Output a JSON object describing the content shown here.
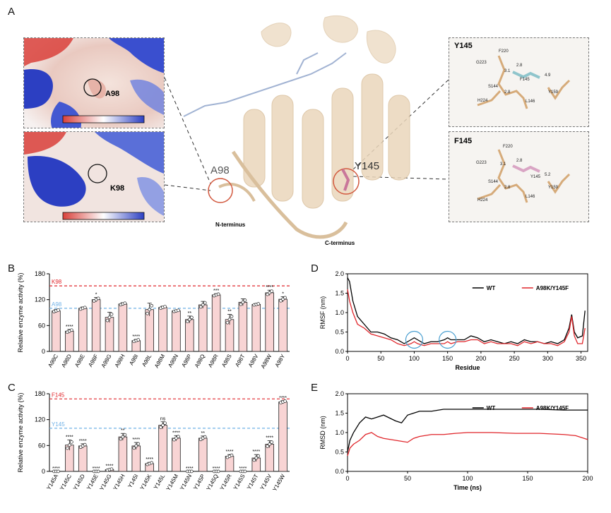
{
  "panel_a": {
    "letter": "A",
    "surface_top_label": "A98",
    "surface_bottom_label": "K98",
    "structure_labels": {
      "a98": "A98",
      "y145": "Y145",
      "n_term": "N-terminus",
      "c_term": "C-terminus"
    },
    "inset_top": {
      "title": "Y145",
      "residues": [
        "F220",
        "G223",
        "H224",
        "S144",
        "F145",
        "L146",
        "Y159"
      ],
      "distances": [
        "2.8",
        "3.1",
        "2.8",
        "4.9"
      ]
    },
    "inset_bottom": {
      "title": "F145",
      "residues": [
        "F220",
        "G223",
        "H224",
        "S144",
        "Y145",
        "L146",
        "Y159"
      ],
      "distances": [
        "3.1",
        "2.8",
        "5.2",
        "2.8"
      ]
    },
    "colors": {
      "protein": "#e9d3b6",
      "surface_neg": "#d9403a",
      "surface_pos": "#2c3fc2",
      "circle": "#d2593f"
    }
  },
  "chart_data": [
    {
      "panel": "B",
      "type": "bar",
      "categories": [
        "A98C",
        "A98D",
        "A98E",
        "A98F",
        "A98G",
        "A98H",
        "A98I",
        "A98L",
        "A98M",
        "A98N",
        "A98P",
        "A98Q",
        "A98R",
        "A98S",
        "A98T",
        "A98V",
        "A98W",
        "A98Y"
      ],
      "values": [
        94,
        47,
        100,
        120,
        79,
        110,
        25,
        97,
        102,
        94,
        74,
        108,
        131,
        74,
        114,
        109,
        136,
        121
      ],
      "errors": [
        3,
        4,
        3,
        5,
        12,
        3,
        3,
        15,
        3,
        2,
        8,
        8,
        3,
        12,
        8,
        2,
        6,
        6
      ],
      "significance": [
        "",
        "****",
        "",
        "*",
        "",
        "",
        "****",
        "",
        "",
        "",
        "**",
        "",
        "***",
        "**",
        "",
        "",
        "****",
        "*"
      ],
      "ylabel": "Relative enzyme activity (%)",
      "ylim": [
        0,
        180
      ],
      "yticks": [
        "0",
        "60",
        "120",
        "180"
      ],
      "reference_lines": [
        {
          "label": "K98",
          "value": 152,
          "color": "#e0262b"
        },
        {
          "label": "A98",
          "value": 100,
          "color": "#6fb1e6"
        }
      ],
      "bar_color": "#f8d4d4"
    },
    {
      "panel": "C",
      "type": "bar",
      "categories": [
        "Y145A",
        "Y145C",
        "Y145D",
        "Y145E",
        "Y145G",
        "Y145H",
        "Y145I",
        "Y145K",
        "Y145L",
        "Y145M",
        "Y145N",
        "Y145P",
        "Y145Q",
        "Y145R",
        "Y145S",
        "Y145T",
        "Y145V",
        "Y145W"
      ],
      "values": [
        0,
        61,
        59,
        0,
        4,
        80,
        59,
        18,
        107,
        77,
        0,
        77,
        0,
        35,
        0,
        31,
        63,
        161
      ],
      "errors": [
        0,
        12,
        5,
        0,
        2,
        8,
        8,
        3,
        8,
        6,
        0,
        5,
        0,
        4,
        0,
        8,
        8,
        3
      ],
      "significance": [
        "****",
        "****",
        "****",
        "****",
        "****",
        "**",
        "****",
        "****",
        "ns",
        "****",
        "****",
        "**",
        "****",
        "****",
        "****",
        "****",
        "****",
        "****"
      ],
      "ylabel": "Relative enzyme activity (%)",
      "ylim": [
        0,
        180
      ],
      "yticks": [
        "0",
        "60",
        "120",
        "180"
      ],
      "reference_lines": [
        {
          "label": "F145",
          "value": 168,
          "color": "#e0262b"
        },
        {
          "label": "Y145",
          "value": 100,
          "color": "#6fb1e6"
        }
      ],
      "bar_color": "#f8d4d4"
    },
    {
      "panel": "D",
      "type": "line",
      "xlabel": "Residue",
      "ylabel": "RMSF (nm)",
      "xlim": [
        0,
        360
      ],
      "ylim": [
        0,
        2.0
      ],
      "xticks": [
        "0",
        "50",
        "100",
        "150",
        "200",
        "250",
        "300",
        "350"
      ],
      "yticks": [
        "0.0",
        "0.5",
        "1.0",
        "1.5",
        "2.0"
      ],
      "series": [
        {
          "name": "WT",
          "color": "#000000",
          "x": [
            0,
            3,
            8,
            15,
            25,
            35,
            45,
            55,
            65,
            75,
            85,
            95,
            100,
            105,
            115,
            125,
            135,
            145,
            150,
            155,
            165,
            175,
            185,
            195,
            205,
            215,
            225,
            235,
            245,
            255,
            265,
            275,
            285,
            295,
            305,
            315,
            325,
            332,
            336,
            340,
            345,
            352,
            356
          ],
          "y": [
            1.9,
            1.8,
            1.3,
            0.9,
            0.7,
            0.5,
            0.5,
            0.45,
            0.35,
            0.3,
            0.2,
            0.3,
            0.35,
            0.3,
            0.2,
            0.25,
            0.25,
            0.3,
            0.35,
            0.3,
            0.3,
            0.3,
            0.4,
            0.35,
            0.25,
            0.3,
            0.25,
            0.2,
            0.25,
            0.2,
            0.3,
            0.25,
            0.25,
            0.2,
            0.25,
            0.2,
            0.3,
            0.6,
            0.95,
            0.5,
            0.35,
            0.4,
            1.05
          ]
        },
        {
          "name": "A98K/Y145F",
          "color": "#e0262b",
          "x": [
            0,
            3,
            8,
            15,
            25,
            35,
            45,
            55,
            65,
            75,
            85,
            95,
            100,
            105,
            115,
            125,
            135,
            145,
            150,
            155,
            165,
            175,
            185,
            195,
            205,
            215,
            225,
            235,
            245,
            255,
            265,
            275,
            285,
            295,
            305,
            315,
            325,
            332,
            336,
            340,
            345,
            352,
            356
          ],
          "y": [
            1.6,
            1.3,
            1.0,
            0.7,
            0.6,
            0.45,
            0.4,
            0.35,
            0.3,
            0.2,
            0.15,
            0.2,
            0.25,
            0.2,
            0.15,
            0.2,
            0.2,
            0.2,
            0.25,
            0.2,
            0.25,
            0.25,
            0.3,
            0.3,
            0.2,
            0.25,
            0.2,
            0.2,
            0.2,
            0.15,
            0.25,
            0.2,
            0.25,
            0.2,
            0.2,
            0.15,
            0.25,
            0.5,
            0.9,
            0.4,
            0.2,
            0.2,
            0.6
          ]
        }
      ],
      "legend": "top-right"
    },
    {
      "panel": "E",
      "type": "line",
      "xlabel": "Time (ns)",
      "ylabel": "RMSD (nm)",
      "xlim": [
        0,
        200
      ],
      "ylim": [
        0,
        2.0
      ],
      "xticks": [
        "0",
        "50",
        "100",
        "150",
        "200"
      ],
      "yticks": [
        "0.0",
        "0.5",
        "1.0",
        "1.5",
        "2.0"
      ],
      "series": [
        {
          "name": "WT",
          "color": "#000000",
          "x": [
            0,
            2,
            5,
            10,
            15,
            20,
            25,
            30,
            40,
            45,
            50,
            55,
            60,
            70,
            80,
            90,
            100,
            120,
            140,
            160,
            180,
            200
          ],
          "y": [
            0.5,
            0.8,
            1.0,
            1.25,
            1.4,
            1.35,
            1.4,
            1.45,
            1.3,
            1.25,
            1.45,
            1.5,
            1.55,
            1.55,
            1.6,
            1.6,
            1.6,
            1.6,
            1.6,
            1.6,
            1.58,
            1.58
          ]
        },
        {
          "name": "A98K/Y145F",
          "color": "#e0262b",
          "x": [
            0,
            2,
            5,
            10,
            15,
            20,
            25,
            30,
            40,
            50,
            55,
            60,
            70,
            80,
            90,
            100,
            120,
            140,
            160,
            180,
            190,
            200
          ],
          "y": [
            0.4,
            0.6,
            0.7,
            0.8,
            0.95,
            1.0,
            0.9,
            0.85,
            0.8,
            0.75,
            0.85,
            0.9,
            0.95,
            0.95,
            0.98,
            1.0,
            1.0,
            0.98,
            0.98,
            0.95,
            0.92,
            0.82
          ]
        }
      ],
      "legend": "top-right"
    }
  ],
  "panel_letters": {
    "b": "B",
    "c": "C",
    "d": "D",
    "e": "E"
  }
}
